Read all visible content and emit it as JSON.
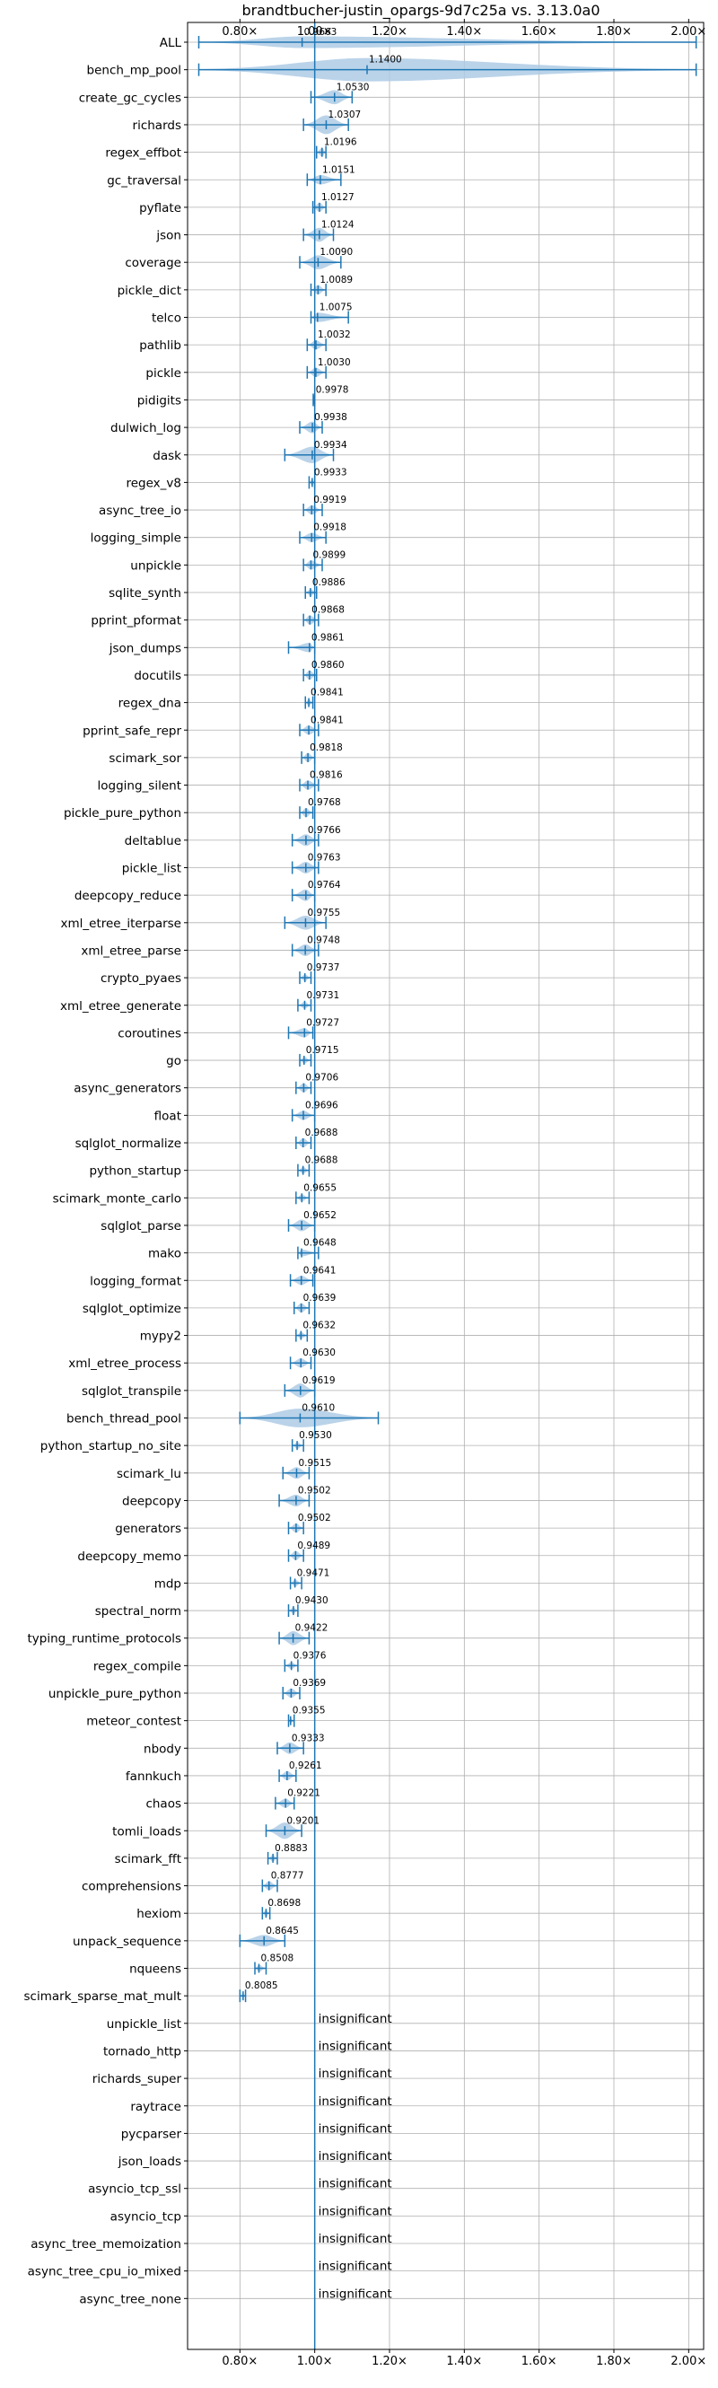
{
  "chart_data": {
    "type": "violin",
    "title": "brandtbucher-justin_opargs-9d7c25a vs. 3.13.0a0",
    "xlabel": "",
    "ylabel": "",
    "xlim": [
      0.66,
      2.04
    ],
    "x_ticks": [
      0.8,
      1.0,
      1.2,
      1.4,
      1.6,
      1.8,
      2.0
    ],
    "x_tick_labels": [
      "0.80×",
      "1.00×",
      "1.20×",
      "1.40×",
      "1.60×",
      "1.80×",
      "2.00×"
    ],
    "reference_line": 1.0,
    "grid": true,
    "colors": {
      "body": "#aecbe5",
      "lines": "#1f77b4"
    },
    "insignificant_text": "insignificant",
    "benchmarks": [
      {
        "name": "ALL",
        "value": 0.9663,
        "label": "0.9663",
        "min": 0.69,
        "max": 2.02,
        "width": 0.5
      },
      {
        "name": "bench_mp_pool",
        "value": 1.14,
        "label": "1.1400",
        "min": 0.69,
        "max": 2.02,
        "width": 1.0
      },
      {
        "name": "create_gc_cycles",
        "value": 1.053,
        "label": "1.0530",
        "min": 0.99,
        "max": 1.1,
        "width": 0.6
      },
      {
        "name": "richards",
        "value": 1.0307,
        "label": "1.0307",
        "min": 0.97,
        "max": 1.09,
        "width": 0.8
      },
      {
        "name": "regex_effbot",
        "value": 1.0196,
        "label": "1.0196",
        "min": 1.005,
        "max": 1.03,
        "width": 0.4
      },
      {
        "name": "gc_traversal",
        "value": 1.0151,
        "label": "1.0151",
        "min": 0.98,
        "max": 1.07,
        "width": 0.4
      },
      {
        "name": "pyflate",
        "value": 1.0127,
        "label": "1.0127",
        "min": 0.995,
        "max": 1.03,
        "width": 0.4
      },
      {
        "name": "json",
        "value": 1.0124,
        "label": "1.0124",
        "min": 0.97,
        "max": 1.05,
        "width": 0.6
      },
      {
        "name": "coverage",
        "value": 1.009,
        "label": "1.0090",
        "min": 0.96,
        "max": 1.07,
        "width": 0.6
      },
      {
        "name": "pickle_dict",
        "value": 1.0089,
        "label": "1.0089",
        "min": 0.99,
        "max": 1.03,
        "width": 0.4
      },
      {
        "name": "telco",
        "value": 1.0075,
        "label": "1.0075",
        "min": 0.99,
        "max": 1.09,
        "width": 0.4
      },
      {
        "name": "pathlib",
        "value": 1.0032,
        "label": "1.0032",
        "min": 0.98,
        "max": 1.03,
        "width": 0.4
      },
      {
        "name": "pickle",
        "value": 1.003,
        "label": "1.0030",
        "min": 0.98,
        "max": 1.03,
        "width": 0.4
      },
      {
        "name": "pidigits",
        "value": 0.9978,
        "label": "0.9978",
        "min": 0.996,
        "max": 1.0,
        "width": 0.2
      },
      {
        "name": "dulwich_log",
        "value": 0.9938,
        "label": "0.9938",
        "min": 0.96,
        "max": 1.02,
        "width": 0.5
      },
      {
        "name": "dask",
        "value": 0.9934,
        "label": "0.9934",
        "min": 0.92,
        "max": 1.05,
        "width": 0.7
      },
      {
        "name": "regex_v8",
        "value": 0.9933,
        "label": "0.9933",
        "min": 0.985,
        "max": 1.0,
        "width": 0.3
      },
      {
        "name": "async_tree_io",
        "value": 0.9919,
        "label": "0.9919",
        "min": 0.97,
        "max": 1.02,
        "width": 0.4
      },
      {
        "name": "logging_simple",
        "value": 0.9918,
        "label": "0.9918",
        "min": 0.96,
        "max": 1.03,
        "width": 0.4
      },
      {
        "name": "unpickle",
        "value": 0.9899,
        "label": "0.9899",
        "min": 0.97,
        "max": 1.02,
        "width": 0.4
      },
      {
        "name": "sqlite_synth",
        "value": 0.9886,
        "label": "0.9886",
        "min": 0.975,
        "max": 1.005,
        "width": 0.3
      },
      {
        "name": "pprint_pformat",
        "value": 0.9868,
        "label": "0.9868",
        "min": 0.97,
        "max": 1.01,
        "width": 0.4
      },
      {
        "name": "json_dumps",
        "value": 0.9861,
        "label": "0.9861",
        "min": 0.93,
        "max": 1.0,
        "width": 0.4
      },
      {
        "name": "docutils",
        "value": 0.986,
        "label": "0.9860",
        "min": 0.97,
        "max": 1.005,
        "width": 0.4
      },
      {
        "name": "regex_dna",
        "value": 0.9841,
        "label": "0.9841",
        "min": 0.975,
        "max": 0.995,
        "width": 0.3
      },
      {
        "name": "pprint_safe_repr",
        "value": 0.9841,
        "label": "0.9841",
        "min": 0.96,
        "max": 1.01,
        "width": 0.4
      },
      {
        "name": "scimark_sor",
        "value": 0.9818,
        "label": "0.9818",
        "min": 0.965,
        "max": 1.0,
        "width": 0.4
      },
      {
        "name": "logging_silent",
        "value": 0.9816,
        "label": "0.9816",
        "min": 0.96,
        "max": 1.01,
        "width": 0.4
      },
      {
        "name": "pickle_pure_python",
        "value": 0.9768,
        "label": "0.9768",
        "min": 0.96,
        "max": 0.995,
        "width": 0.4
      },
      {
        "name": "deltablue",
        "value": 0.9766,
        "label": "0.9766",
        "min": 0.94,
        "max": 1.01,
        "width": 0.5
      },
      {
        "name": "pickle_list",
        "value": 0.9763,
        "label": "0.9763",
        "min": 0.94,
        "max": 1.01,
        "width": 0.5
      },
      {
        "name": "deepcopy_reduce",
        "value": 0.9764,
        "label": "0.9764",
        "min": 0.94,
        "max": 1.0,
        "width": 0.5
      },
      {
        "name": "xml_etree_iterparse",
        "value": 0.9755,
        "label": "0.9755",
        "min": 0.92,
        "max": 1.03,
        "width": 0.6
      },
      {
        "name": "xml_etree_parse",
        "value": 0.9748,
        "label": "0.9748",
        "min": 0.94,
        "max": 1.01,
        "width": 0.5
      },
      {
        "name": "crypto_pyaes",
        "value": 0.9737,
        "label": "0.9737",
        "min": 0.96,
        "max": 0.99,
        "width": 0.3
      },
      {
        "name": "xml_etree_generate",
        "value": 0.9731,
        "label": "0.9731",
        "min": 0.955,
        "max": 0.99,
        "width": 0.3
      },
      {
        "name": "coroutines",
        "value": 0.9727,
        "label": "0.9727",
        "min": 0.93,
        "max": 0.995,
        "width": 0.4
      },
      {
        "name": "go",
        "value": 0.9715,
        "label": "0.9715",
        "min": 0.96,
        "max": 0.99,
        "width": 0.3
      },
      {
        "name": "async_generators",
        "value": 0.9706,
        "label": "0.9706",
        "min": 0.95,
        "max": 0.99,
        "width": 0.4
      },
      {
        "name": "float",
        "value": 0.9696,
        "label": "0.9696",
        "min": 0.94,
        "max": 1.0,
        "width": 0.4
      },
      {
        "name": "sqlglot_normalize",
        "value": 0.9688,
        "label": "0.9688",
        "min": 0.95,
        "max": 0.99,
        "width": 0.4
      },
      {
        "name": "python_startup",
        "value": 0.9688,
        "label": "0.9688",
        "min": 0.955,
        "max": 0.985,
        "width": 0.3
      },
      {
        "name": "scimark_monte_carlo",
        "value": 0.9655,
        "label": "0.9655",
        "min": 0.95,
        "max": 0.985,
        "width": 0.3
      },
      {
        "name": "sqlglot_parse",
        "value": 0.9652,
        "label": "0.9652",
        "min": 0.93,
        "max": 1.0,
        "width": 0.5
      },
      {
        "name": "mako",
        "value": 0.9648,
        "label": "0.9648",
        "min": 0.955,
        "max": 1.01,
        "width": 0.3
      },
      {
        "name": "logging_format",
        "value": 0.9641,
        "label": "0.9641",
        "min": 0.935,
        "max": 0.995,
        "width": 0.4
      },
      {
        "name": "sqlglot_optimize",
        "value": 0.9639,
        "label": "0.9639",
        "min": 0.945,
        "max": 0.985,
        "width": 0.4
      },
      {
        "name": "mypy2",
        "value": 0.9632,
        "label": "0.9632",
        "min": 0.95,
        "max": 0.98,
        "width": 0.3
      },
      {
        "name": "xml_etree_process",
        "value": 0.963,
        "label": "0.9630",
        "min": 0.935,
        "max": 0.99,
        "width": 0.4
      },
      {
        "name": "sqlglot_transpile",
        "value": 0.9619,
        "label": "0.9619",
        "min": 0.92,
        "max": 1.0,
        "width": 0.6
      },
      {
        "name": "bench_thread_pool",
        "value": 0.961,
        "label": "0.9610",
        "min": 0.8,
        "max": 1.17,
        "width": 0.8
      },
      {
        "name": "python_startup_no_site",
        "value": 0.953,
        "label": "0.9530",
        "min": 0.94,
        "max": 0.97,
        "width": 0.3
      },
      {
        "name": "scimark_lu",
        "value": 0.9515,
        "label": "0.9515",
        "min": 0.915,
        "max": 0.985,
        "width": 0.5
      },
      {
        "name": "deepcopy",
        "value": 0.9502,
        "label": "0.9502",
        "min": 0.905,
        "max": 0.985,
        "width": 0.5
      },
      {
        "name": "generators",
        "value": 0.9502,
        "label": "0.9502",
        "min": 0.93,
        "max": 0.97,
        "width": 0.4
      },
      {
        "name": "deepcopy_memo",
        "value": 0.9489,
        "label": "0.9489",
        "min": 0.93,
        "max": 0.97,
        "width": 0.4
      },
      {
        "name": "mdp",
        "value": 0.9471,
        "label": "0.9471",
        "min": 0.935,
        "max": 0.965,
        "width": 0.3
      },
      {
        "name": "spectral_norm",
        "value": 0.943,
        "label": "0.9430",
        "min": 0.93,
        "max": 0.955,
        "width": 0.3
      },
      {
        "name": "typing_runtime_protocols",
        "value": 0.9422,
        "label": "0.9422",
        "min": 0.905,
        "max": 0.985,
        "width": 0.6
      },
      {
        "name": "regex_compile",
        "value": 0.9376,
        "label": "0.9376",
        "min": 0.92,
        "max": 0.955,
        "width": 0.3
      },
      {
        "name": "unpickle_pure_python",
        "value": 0.9369,
        "label": "0.9369",
        "min": 0.915,
        "max": 0.96,
        "width": 0.4
      },
      {
        "name": "meteor_contest",
        "value": 0.9355,
        "label": "0.9355",
        "min": 0.93,
        "max": 0.945,
        "width": 0.2
      },
      {
        "name": "nbody",
        "value": 0.9333,
        "label": "0.9333",
        "min": 0.9,
        "max": 0.97,
        "width": 0.5
      },
      {
        "name": "fannkuch",
        "value": 0.9261,
        "label": "0.9261",
        "min": 0.905,
        "max": 0.95,
        "width": 0.4
      },
      {
        "name": "chaos",
        "value": 0.9221,
        "label": "0.9221",
        "min": 0.895,
        "max": 0.945,
        "width": 0.4
      },
      {
        "name": "tomli_loads",
        "value": 0.9201,
        "label": "0.9201",
        "min": 0.87,
        "max": 0.965,
        "width": 0.7
      },
      {
        "name": "scimark_fft",
        "value": 0.8883,
        "label": "0.8883",
        "min": 0.875,
        "max": 0.9,
        "width": 0.3
      },
      {
        "name": "comprehensions",
        "value": 0.8777,
        "label": "0.8777",
        "min": 0.86,
        "max": 0.9,
        "width": 0.4
      },
      {
        "name": "hexiom",
        "value": 0.8698,
        "label": "0.8698",
        "min": 0.86,
        "max": 0.88,
        "width": 0.3
      },
      {
        "name": "unpack_sequence",
        "value": 0.8645,
        "label": "0.8645",
        "min": 0.8,
        "max": 0.92,
        "width": 0.5
      },
      {
        "name": "nqueens",
        "value": 0.8508,
        "label": "0.8508",
        "min": 0.84,
        "max": 0.87,
        "width": 0.3
      },
      {
        "name": "scimark_sparse_mat_mult",
        "value": 0.8085,
        "label": "0.8085",
        "min": 0.8,
        "max": 0.815,
        "width": 0.2
      },
      {
        "name": "unpickle_list",
        "value": null,
        "label": "",
        "insignificant": true
      },
      {
        "name": "tornado_http",
        "value": null,
        "label": "",
        "insignificant": true
      },
      {
        "name": "richards_super",
        "value": null,
        "label": "",
        "insignificant": true
      },
      {
        "name": "raytrace",
        "value": null,
        "label": "",
        "insignificant": true
      },
      {
        "name": "pycparser",
        "value": null,
        "label": "",
        "insignificant": true
      },
      {
        "name": "json_loads",
        "value": null,
        "label": "",
        "insignificant": true
      },
      {
        "name": "asyncio_tcp_ssl",
        "value": null,
        "label": "",
        "insignificant": true
      },
      {
        "name": "asyncio_tcp",
        "value": null,
        "label": "",
        "insignificant": true
      },
      {
        "name": "async_tree_memoization",
        "value": null,
        "label": "",
        "insignificant": true
      },
      {
        "name": "async_tree_cpu_io_mixed",
        "value": null,
        "label": "",
        "insignificant": true
      },
      {
        "name": "async_tree_none",
        "value": null,
        "label": "",
        "insignificant": true
      }
    ]
  }
}
